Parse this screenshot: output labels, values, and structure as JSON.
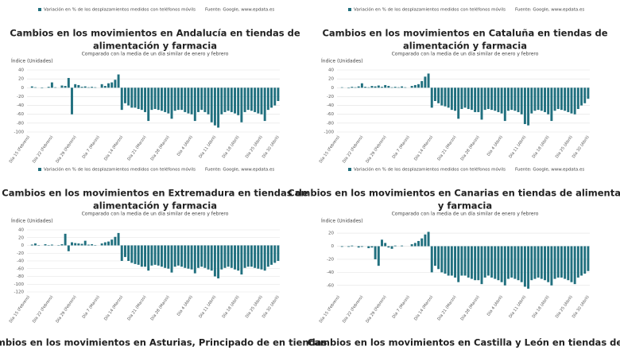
{
  "chart_data": [
    {
      "type": "bar",
      "legend": "Variación en % de los desplazamientos medidos con teléfonos móvils",
      "source": "Fuente: Google, www.epdata.es",
      "title": [
        "Cambios en los movimientos en Andalucía en tiendas de",
        "alimentación y farmacia"
      ],
      "subtitle": "Comparado con la media de un día similar de enero y febrero",
      "y_label": "Índice (Unidades)",
      "color": "#21707f",
      "grid": true,
      "ylim": [
        -100,
        40
      ],
      "yticks": [
        40,
        20,
        0,
        -20,
        -40,
        -60,
        -80,
        -100
      ],
      "categories": [
        "Día 15 (Febrero)",
        null,
        null,
        null,
        null,
        null,
        null,
        "Día 22 (Febrero)",
        null,
        null,
        null,
        null,
        null,
        null,
        "Día 29 (Febrero)",
        null,
        null,
        null,
        null,
        null,
        null,
        "Día 7 (Marzo)",
        null,
        null,
        null,
        null,
        null,
        null,
        "Día 14 (Marzo)",
        null,
        null,
        null,
        null,
        null,
        null,
        "Día 21 (Marzo)",
        null,
        null,
        null,
        null,
        null,
        null,
        "Día 28 (Marzo)",
        null,
        null,
        null,
        null,
        null,
        null,
        "Día 4 (Abril)",
        null,
        null,
        null,
        null,
        null,
        null,
        "Día 11 (Abril)",
        null,
        null,
        null,
        null,
        null,
        null,
        "Día 18 (Abril)",
        null,
        null,
        null,
        null,
        null,
        null,
        "Día 25 (Abril)",
        null,
        null,
        null,
        null,
        "Día 30 (Abril)"
      ],
      "values": [
        0,
        3,
        1,
        0,
        -1,
        0,
        2,
        12,
        1,
        0,
        5,
        4,
        22,
        -60,
        8,
        6,
        2,
        3,
        1,
        2,
        1,
        0,
        8,
        4,
        10,
        12,
        18,
        30,
        -50,
        -35,
        -40,
        -45,
        -45,
        -48,
        -50,
        -55,
        -75,
        -50,
        -48,
        -50,
        -52,
        -55,
        -58,
        -70,
        -52,
        -50,
        -50,
        -55,
        -58,
        -60,
        -75,
        -55,
        -50,
        -55,
        -60,
        -78,
        -85,
        -90,
        -60,
        -55,
        -52,
        -55,
        -58,
        -62,
        -78,
        -55,
        -50,
        -52,
        -55,
        -58,
        -60,
        -75,
        -50,
        -45,
        -40,
        -30
      ]
    },
    {
      "type": "bar",
      "legend": "Variación en % de los desplazamientos medidos con teléfonos móvils",
      "source": "Fuente: Google, www.epdata.es",
      "title": [
        "Cambios en los movimientos en Cataluña en tiendas de",
        "alimentación y farmacia"
      ],
      "subtitle": "Comparado con la media de un día similar de enero y febrero",
      "y_label": "Índice (Unidades)",
      "color": "#21707f",
      "grid": true,
      "ylim": [
        -100,
        40
      ],
      "yticks": [
        40,
        20,
        0,
        -20,
        -40,
        -60,
        -80,
        -100
      ],
      "categories": [
        "Día 15 (Febrero)",
        null,
        null,
        null,
        null,
        null,
        null,
        "Día 22 (Febrero)",
        null,
        null,
        null,
        null,
        null,
        null,
        "Día 29 (Febrero)",
        null,
        null,
        null,
        null,
        null,
        null,
        "Día 7 (Marzo)",
        null,
        null,
        null,
        null,
        null,
        null,
        "Día 14 (Marzo)",
        null,
        null,
        null,
        null,
        null,
        null,
        "Día 21 (Marzo)",
        null,
        null,
        null,
        null,
        null,
        null,
        "Día 28 (Marzo)",
        null,
        null,
        null,
        null,
        null,
        null,
        "Día 4 (Abril)",
        null,
        null,
        null,
        null,
        null,
        null,
        "Día 11 (Abril)",
        null,
        null,
        null,
        null,
        null,
        null,
        "Día 18 (Abril)",
        null,
        null,
        null,
        null,
        null,
        null,
        "Día 25 (Abril)",
        null,
        null,
        null,
        null,
        "Día 30 (Abril)"
      ],
      "values": [
        0,
        1,
        0,
        -1,
        2,
        1,
        3,
        10,
        2,
        1,
        4,
        3,
        5,
        2,
        6,
        4,
        1,
        2,
        1,
        3,
        1,
        0,
        4,
        6,
        8,
        15,
        25,
        32,
        -45,
        -30,
        -35,
        -40,
        -42,
        -45,
        -50,
        -52,
        -70,
        -48,
        -45,
        -48,
        -50,
        -55,
        -55,
        -72,
        -50,
        -48,
        -50,
        -52,
        -55,
        -58,
        -75,
        -52,
        -50,
        -52,
        -55,
        -60,
        -82,
        -85,
        -58,
        -52,
        -50,
        -52,
        -55,
        -60,
        -75,
        -52,
        -48,
        -50,
        -52,
        -55,
        -58,
        -60,
        -48,
        -40,
        -35,
        -25
      ]
    },
    {
      "type": "bar",
      "legend": "Variación en % de los desplazamientos medidos con teléfonos móvils",
      "source": "Fuente: Google, www.epdata.es",
      "title": [
        "Cambios en los movimientos en Extremadura en tiendas de",
        "alimentación y farmacia"
      ],
      "subtitle": "Comparado con la media de un día similar de enero y febrero",
      "y_label": "Índice (Unidades)",
      "color": "#21707f",
      "grid": true,
      "ylim": [
        -120,
        40
      ],
      "yticks": [
        40,
        20,
        0,
        -20,
        -40,
        -60,
        -80,
        -100,
        -120
      ],
      "categories": [
        "Día 15 (Febrero)",
        null,
        null,
        null,
        null,
        null,
        null,
        "Día 22 (Febrero)",
        null,
        null,
        null,
        null,
        null,
        null,
        "Día 29 (Febrero)",
        null,
        null,
        null,
        null,
        null,
        null,
        "Día 7 (Marzo)",
        null,
        null,
        null,
        null,
        null,
        null,
        "Día 14 (Marzo)",
        null,
        null,
        null,
        null,
        null,
        null,
        "Día 21 (Marzo)",
        null,
        null,
        null,
        null,
        null,
        null,
        "Día 28 (Marzo)",
        null,
        null,
        null,
        null,
        null,
        null,
        "Día 4 (Abril)",
        null,
        null,
        null,
        null,
        null,
        null,
        "Día 11 (Abril)",
        null,
        null,
        null,
        null,
        null,
        null,
        "Día 18 (Abril)",
        null,
        null,
        null,
        null,
        null,
        null,
        "Día 25 (Abril)",
        null,
        null,
        null,
        null,
        "Día 30 (Abril)"
      ],
      "values": [
        0,
        2,
        5,
        1,
        0,
        3,
        1,
        2,
        0,
        1,
        3,
        30,
        -15,
        8,
        6,
        5,
        4,
        12,
        2,
        3,
        1,
        0,
        5,
        8,
        10,
        15,
        22,
        32,
        -40,
        -30,
        -40,
        -45,
        -48,
        -50,
        -55,
        -55,
        -65,
        -52,
        -50,
        -52,
        -55,
        -58,
        -60,
        -70,
        -55,
        -52,
        -55,
        -58,
        -60,
        -62,
        -72,
        -58,
        -55,
        -58,
        -62,
        -65,
        -80,
        -85,
        -62,
        -58,
        -55,
        -58,
        -62,
        -65,
        -75,
        -58,
        -55,
        -55,
        -58,
        -60,
        -62,
        -65,
        -55,
        -50,
        -45,
        -40
      ]
    },
    {
      "type": "bar",
      "legend": "Variación en % de los desplazamientos medidos con teléfonos móvils",
      "source": "Fuente: Google, www.epdata.es",
      "title": [
        "Cambios en los movimientos en Canarias en tiendas de alimentación",
        "y farmacia"
      ],
      "subtitle": "Comparado con la media de un día similar de enero y febrero",
      "y_label": "Índice (Unidades)",
      "color": "#21707f",
      "grid": true,
      "ylim": [
        -70,
        25
      ],
      "yticks": [
        20,
        0,
        -20,
        -40,
        -60
      ],
      "categories": [
        "Día 15 (Febrero)",
        null,
        null,
        null,
        null,
        null,
        null,
        "Día 22 (Febrero)",
        null,
        null,
        null,
        null,
        null,
        null,
        "Día 29 (Febrero)",
        null,
        null,
        null,
        null,
        null,
        null,
        "Día 7 (Marzo)",
        null,
        null,
        null,
        null,
        null,
        null,
        "Día 14 (Marzo)",
        null,
        null,
        null,
        null,
        null,
        null,
        "Día 21 (Marzo)",
        null,
        null,
        null,
        null,
        null,
        null,
        "Día 28 (Marzo)",
        null,
        null,
        null,
        null,
        null,
        null,
        "Día 4 (Abril)",
        null,
        null,
        null,
        null,
        null,
        null,
        "Día 11 (Abril)",
        null,
        null,
        null,
        null,
        null,
        null,
        "Día 18 (Abril)",
        null,
        null,
        null,
        null,
        null,
        null,
        "Día 25 (Abril)",
        null,
        null,
        null,
        null,
        "Día 30 (Abril)"
      ],
      "values": [
        0,
        -1,
        0,
        -1,
        1,
        0,
        -2,
        -1,
        0,
        -3,
        -2,
        -20,
        -30,
        10,
        5,
        -2,
        -4,
        1,
        0,
        1,
        0,
        0,
        3,
        5,
        8,
        12,
        18,
        22,
        -40,
        -30,
        -35,
        -40,
        -42,
        -45,
        -45,
        -48,
        -55,
        -45,
        -45,
        -48,
        -50,
        -52,
        -52,
        -58,
        -48,
        -45,
        -48,
        -50,
        -52,
        -55,
        -60,
        -50,
        -48,
        -50,
        -52,
        -55,
        -62,
        -65,
        -52,
        -50,
        -48,
        -50,
        -52,
        -55,
        -60,
        -50,
        -48,
        -48,
        -50,
        -52,
        -55,
        -58,
        -48,
        -45,
        -42,
        -38
      ]
    }
  ],
  "partial_titles": [
    "Cambios en los movimientos en Asturias, Principado de en tiendas",
    "Cambios en los movimientos en Castilla y León en tiendas de"
  ]
}
